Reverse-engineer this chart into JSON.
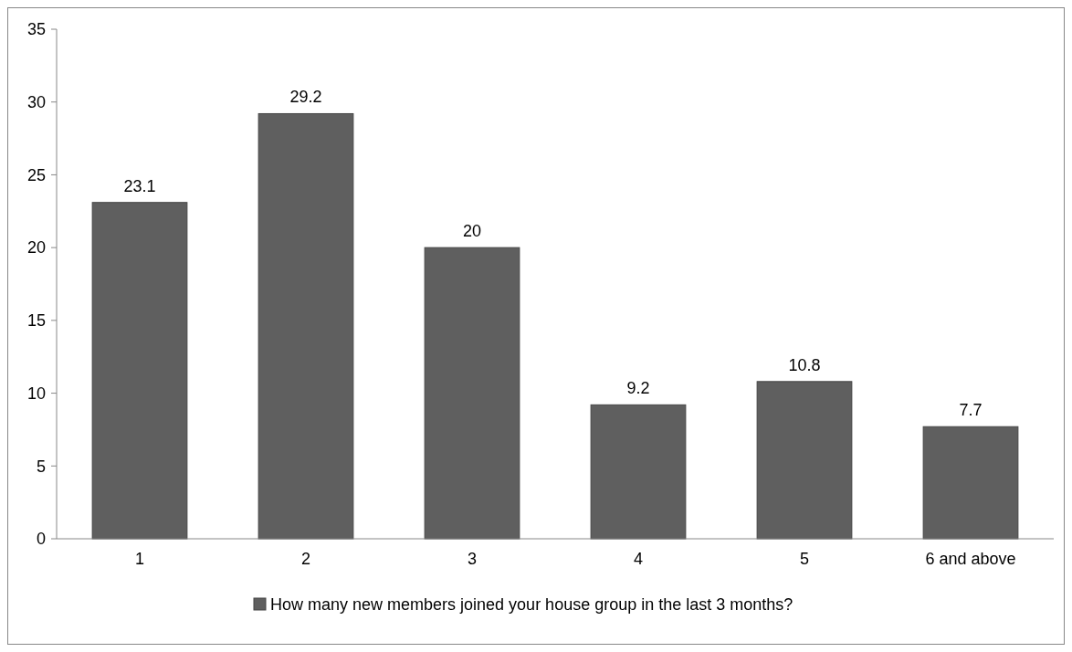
{
  "chart_data": {
    "type": "bar",
    "categories": [
      "1",
      "2",
      "3",
      "4",
      "5",
      "6 and above"
    ],
    "series": [
      {
        "name": "How many new members joined your house group in the last 3 months?",
        "color": "#5f5f5f",
        "values": [
          23.1,
          29.2,
          20,
          9.2,
          10.8,
          7.7
        ]
      }
    ],
    "ylim": [
      0,
      35
    ],
    "yticks": [
      0,
      5,
      10,
      15,
      20,
      25,
      30,
      35
    ],
    "grid": false,
    "legend": "bottom",
    "data_labels": true
  }
}
